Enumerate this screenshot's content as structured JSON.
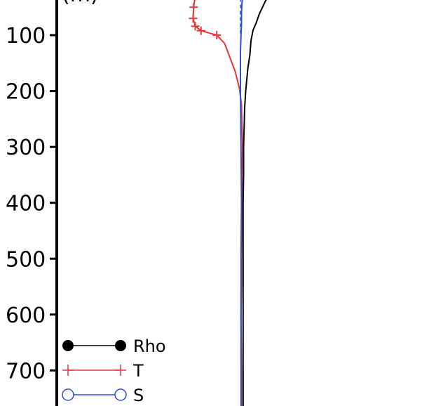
{
  "chart_data": {
    "type": "line",
    "title": "",
    "xlabel": "",
    "ylabel": "",
    "yaxis_inverted": true,
    "ylim": [
      778,
      0
    ],
    "y_ticks": [
      100,
      200,
      300,
      400,
      500,
      600,
      700
    ],
    "y_tick_labels": [
      "100",
      "200",
      "300",
      "400",
      "500",
      "600",
      "700"
    ],
    "ylabel_partial_visible": "(m)",
    "grid": false,
    "legend_position": "bottom-left",
    "series": [
      {
        "name": "Rho",
        "color": "#000000",
        "marker": "filled-circle",
        "points": [
          [
            0.88,
            0
          ],
          [
            0.8,
            7
          ],
          [
            0.7,
            17
          ],
          [
            0.48,
            38
          ],
          [
            0.36,
            62
          ],
          [
            0.3,
            78
          ],
          [
            0.24,
            91
          ],
          [
            0.2,
            110
          ],
          [
            0.18,
            135
          ],
          [
            0.14,
            160
          ],
          [
            0.1,
            200
          ],
          [
            0.08,
            230
          ],
          [
            0.06,
            300
          ],
          [
            0.06,
            350
          ],
          [
            0.05,
            400
          ],
          [
            0.05,
            500
          ],
          [
            0.05,
            600
          ],
          [
            0.05,
            700
          ],
          [
            0.05,
            778
          ]
        ],
        "marker_points": [
          [
            0.88,
            0
          ],
          [
            0.8,
            7
          ],
          [
            0.7,
            17
          ]
        ]
      },
      {
        "name": "T",
        "color": "#e8363a",
        "marker": "plus",
        "points": [
          [
            -0.75,
            0
          ],
          [
            -0.82,
            15
          ],
          [
            -0.86,
            30
          ],
          [
            -0.89,
            50
          ],
          [
            -0.9,
            70
          ],
          [
            -0.86,
            84
          ],
          [
            -0.75,
            92
          ],
          [
            -0.45,
            100
          ],
          [
            -0.3,
            115
          ],
          [
            -0.2,
            140
          ],
          [
            -0.1,
            165
          ],
          [
            -0.02,
            195
          ],
          [
            0.02,
            225
          ],
          [
            0.04,
            300
          ],
          [
            0.03,
            350
          ],
          [
            0.04,
            400
          ],
          [
            0.03,
            450
          ],
          [
            0.02,
            500
          ],
          [
            0.02,
            550
          ],
          [
            0.01,
            600
          ],
          [
            0.02,
            700
          ],
          [
            0.02,
            778
          ]
        ],
        "marker_points": [
          [
            -0.75,
            0
          ],
          [
            -0.82,
            15
          ],
          [
            -0.86,
            30
          ],
          [
            -0.89,
            50
          ],
          [
            -0.9,
            70
          ],
          [
            -0.86,
            84
          ],
          [
            -0.75,
            92
          ],
          [
            -0.45,
            100
          ]
        ]
      },
      {
        "name": "S",
        "color": "#2b4fd6",
        "marker": "open-circle",
        "points": [
          [
            0.16,
            0
          ],
          [
            0.1,
            10
          ],
          [
            0.06,
            20
          ],
          [
            0.03,
            40
          ],
          [
            0.02,
            60
          ],
          [
            0.02,
            80
          ],
          [
            0.01,
            100
          ],
          [
            0.0,
            130
          ],
          [
            0.0,
            160
          ],
          [
            0.0,
            200
          ],
          [
            0.01,
            300
          ],
          [
            0.02,
            400
          ],
          [
            0.01,
            500
          ],
          [
            0.01,
            600
          ],
          [
            0.01,
            778
          ]
        ],
        "marker_points": [
          [
            0.16,
            0
          ]
        ]
      }
    ],
    "reference_line": {
      "x": 0.0,
      "style": "dashed",
      "color": "#2b4fd6",
      "y_range": [
        0,
        100
      ]
    }
  }
}
